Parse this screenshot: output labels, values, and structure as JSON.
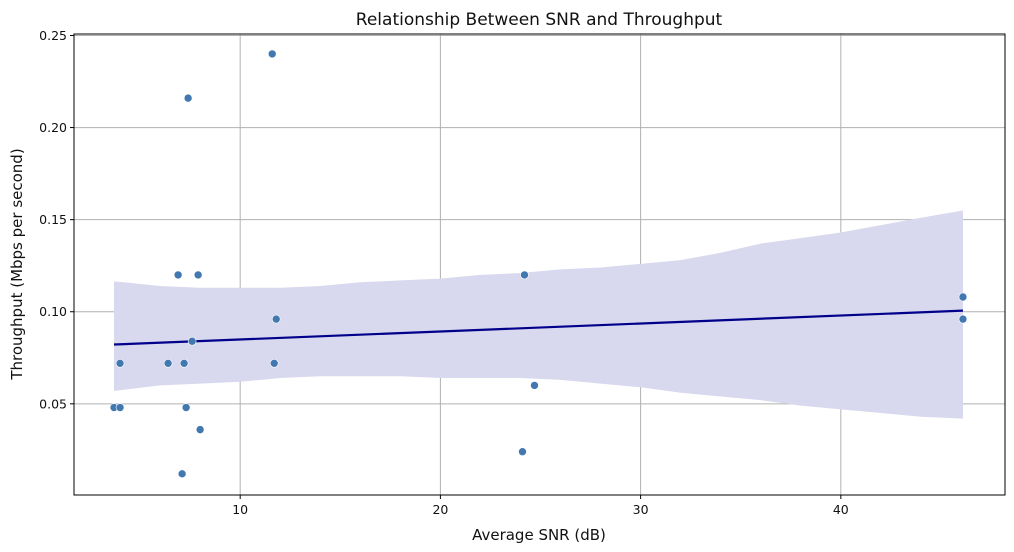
{
  "chart_data": {
    "type": "scatter",
    "title": "Relationship Between SNR and Throughput",
    "xlabel": "Average SNR (dB)",
    "ylabel": "Throughput (Mbps per second)",
    "xlim": [
      1.7,
      48.2
    ],
    "ylim": [
      0.0005,
      0.2508
    ],
    "xticks": [
      10,
      20,
      30,
      40
    ],
    "yticks": [
      0.05,
      0.1,
      0.15,
      0.2,
      0.25
    ],
    "ytick_labels": [
      "0.05",
      "0.10",
      "0.15",
      "0.20",
      "0.25"
    ],
    "grid": true,
    "colors": {
      "points": "#4178b0",
      "fit": "#00008b",
      "band": "#d8d8ee"
    },
    "points": [
      {
        "x": 3.7,
        "y": 0.048
      },
      {
        "x": 4.0,
        "y": 0.048
      },
      {
        "x": 4.0,
        "y": 0.072
      },
      {
        "x": 6.4,
        "y": 0.072
      },
      {
        "x": 6.9,
        "y": 0.12
      },
      {
        "x": 7.1,
        "y": 0.012
      },
      {
        "x": 7.2,
        "y": 0.072
      },
      {
        "x": 7.3,
        "y": 0.048
      },
      {
        "x": 7.4,
        "y": 0.216
      },
      {
        "x": 7.6,
        "y": 0.084
      },
      {
        "x": 7.9,
        "y": 0.12
      },
      {
        "x": 8.0,
        "y": 0.036
      },
      {
        "x": 11.6,
        "y": 0.24
      },
      {
        "x": 11.7,
        "y": 0.072
      },
      {
        "x": 11.8,
        "y": 0.096
      },
      {
        "x": 24.1,
        "y": 0.024
      },
      {
        "x": 24.2,
        "y": 0.12
      },
      {
        "x": 24.7,
        "y": 0.06
      },
      {
        "x": 46.1,
        "y": 0.108
      },
      {
        "x": 46.1,
        "y": 0.096
      }
    ],
    "regression": {
      "x": [
        3.7,
        46.1
      ],
      "y": [
        0.0822,
        0.1006
      ]
    },
    "confidence_band": {
      "x": [
        3.7,
        6.0,
        8.0,
        10.0,
        12.0,
        14.0,
        16.0,
        18.0,
        20.0,
        22.0,
        24.0,
        26.0,
        28.0,
        30.0,
        32.0,
        34.0,
        36.0,
        38.0,
        40.0,
        42.0,
        44.0,
        46.1
      ],
      "upper": [
        0.1165,
        0.114,
        0.113,
        0.113,
        0.113,
        0.114,
        0.116,
        0.117,
        0.118,
        0.12,
        0.121,
        0.123,
        0.124,
        0.126,
        0.128,
        0.132,
        0.137,
        0.14,
        0.143,
        0.147,
        0.151,
        0.155
      ],
      "lower": [
        0.057,
        0.06,
        0.061,
        0.062,
        0.064,
        0.065,
        0.065,
        0.065,
        0.064,
        0.064,
        0.064,
        0.063,
        0.061,
        0.059,
        0.056,
        0.054,
        0.052,
        0.049,
        0.047,
        0.045,
        0.043,
        0.042
      ]
    }
  }
}
